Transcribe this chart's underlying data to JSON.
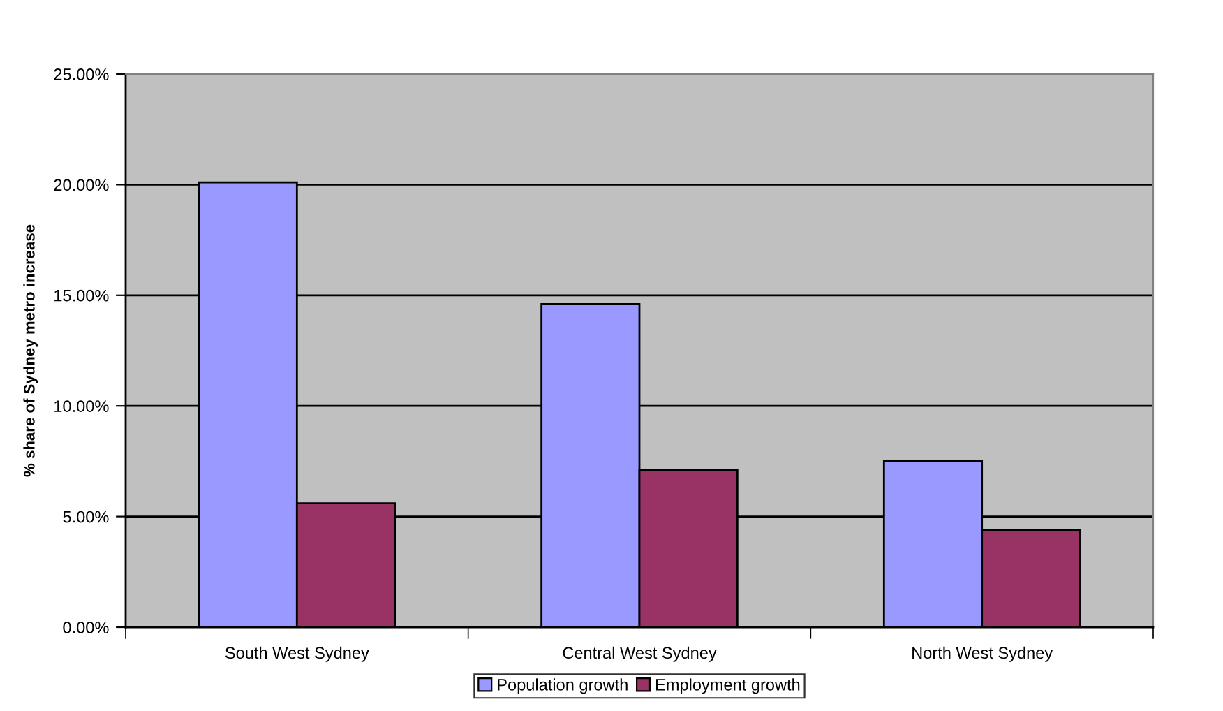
{
  "chart_data": {
    "type": "bar",
    "ylabel": "% share of Sydney metro increase",
    "categories": [
      "South West Sydney",
      "Central West Sydney",
      "North West Sydney"
    ],
    "series": [
      {
        "name": "Population growth",
        "color": "#9999ff",
        "values": [
          20.1,
          14.6,
          7.5
        ]
      },
      {
        "name": "Employment growth",
        "color": "#993366",
        "values": [
          5.6,
          7.1,
          4.4
        ]
      }
    ],
    "ylim": [
      0,
      25
    ],
    "yticks": [
      {
        "value": 0,
        "label": "0.00%"
      },
      {
        "value": 5,
        "label": "5.00%"
      },
      {
        "value": 10,
        "label": "10.00%"
      },
      {
        "value": 15,
        "label": "15.00%"
      },
      {
        "value": 20,
        "label": "20.00%"
      },
      {
        "value": 25,
        "label": "25.00%"
      }
    ],
    "grid": "y",
    "legend": "bottom"
  }
}
